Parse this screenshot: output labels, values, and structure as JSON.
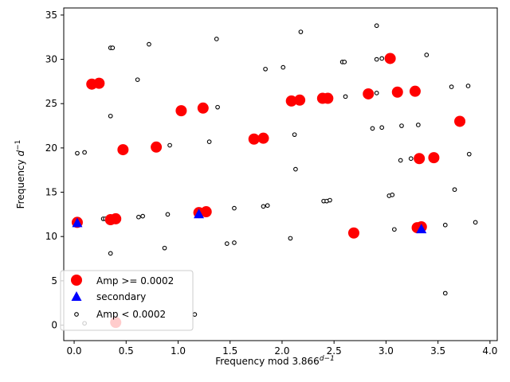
{
  "chart_data": {
    "type": "scatter",
    "xlabel": "Frequency mod 3.866",
    "xlabel_sup": "d−1",
    "ylabel": "Frequency ",
    "ylabel_var": "d",
    "ylabel_sup": "−1",
    "xlim": [
      -0.1,
      4.07
    ],
    "ylim": [
      -1.75,
      35.8
    ],
    "x_ticks": [
      0.0,
      0.5,
      1.0,
      1.5,
      2.0,
      2.5,
      3.0,
      3.5,
      4.0
    ],
    "x_tick_labels": [
      "0.0",
      "0.5",
      "1.0",
      "1.5",
      "2.0",
      "2.5",
      "3.0",
      "3.5",
      "4.0"
    ],
    "y_ticks": [
      0,
      5,
      10,
      15,
      20,
      25,
      30,
      35
    ],
    "y_tick_labels": [
      "0",
      "5",
      "10",
      "15",
      "20",
      "25",
      "30",
      "35"
    ],
    "grid": false,
    "legend_position": "lower-left",
    "series": [
      {
        "name": "Amp >= 0.0002",
        "marker": "circle",
        "color": "#ff0000",
        "points": [
          [
            0.03,
            11.6
          ],
          [
            0.35,
            11.9
          ],
          [
            0.4,
            12.0
          ],
          [
            0.4,
            0.3
          ],
          [
            0.17,
            27.2
          ],
          [
            0.24,
            27.3
          ],
          [
            0.47,
            19.8
          ],
          [
            0.79,
            20.1
          ],
          [
            1.03,
            24.2
          ],
          [
            1.24,
            24.5
          ],
          [
            1.2,
            12.7
          ],
          [
            1.27,
            12.8
          ],
          [
            1.73,
            21.0
          ],
          [
            1.82,
            21.1
          ],
          [
            2.09,
            25.3
          ],
          [
            2.17,
            25.4
          ],
          [
            2.39,
            25.6
          ],
          [
            2.44,
            25.6
          ],
          [
            2.69,
            10.4
          ],
          [
            2.83,
            26.1
          ],
          [
            3.04,
            30.1
          ],
          [
            3.11,
            26.3
          ],
          [
            3.28,
            26.4
          ],
          [
            3.3,
            11.0
          ],
          [
            3.34,
            11.1
          ],
          [
            3.32,
            18.8
          ],
          [
            3.46,
            18.9
          ],
          [
            3.71,
            23.0
          ]
        ]
      },
      {
        "name": "secondary",
        "marker": "triangle",
        "color": "#0000ff",
        "points": [
          [
            0.03,
            11.6
          ],
          [
            1.2,
            12.6
          ],
          [
            3.34,
            10.9
          ]
        ]
      },
      {
        "name": "Amp < 0.0002",
        "marker": "open-circle",
        "color": "#000000",
        "points": [
          [
            0.03,
            19.4
          ],
          [
            0.1,
            19.5
          ],
          [
            0.1,
            0.2
          ],
          [
            0.28,
            12.0
          ],
          [
            0.3,
            12.0
          ],
          [
            0.35,
            8.1
          ],
          [
            0.35,
            23.6
          ],
          [
            0.35,
            31.3
          ],
          [
            0.37,
            31.3
          ],
          [
            0.61,
            27.7
          ],
          [
            0.62,
            12.2
          ],
          [
            0.66,
            12.3
          ],
          [
            0.72,
            31.7
          ],
          [
            0.87,
            8.7
          ],
          [
            0.9,
            12.5
          ],
          [
            0.92,
            20.3
          ],
          [
            1.16,
            1.2
          ],
          [
            1.3,
            20.7
          ],
          [
            1.37,
            32.3
          ],
          [
            1.38,
            24.6
          ],
          [
            1.47,
            9.2
          ],
          [
            1.54,
            9.3
          ],
          [
            1.54,
            13.2
          ],
          [
            1.82,
            13.4
          ],
          [
            1.84,
            28.9
          ],
          [
            1.86,
            13.5
          ],
          [
            2.01,
            29.1
          ],
          [
            2.08,
            9.8
          ],
          [
            2.12,
            21.5
          ],
          [
            2.13,
            17.6
          ],
          [
            2.18,
            33.1
          ],
          [
            2.4,
            14.0
          ],
          [
            2.43,
            14.0
          ],
          [
            2.46,
            14.1
          ],
          [
            2.58,
            29.7
          ],
          [
            2.6,
            29.7
          ],
          [
            2.61,
            25.8
          ],
          [
            2.87,
            22.2
          ],
          [
            2.91,
            33.8
          ],
          [
            2.91,
            26.2
          ],
          [
            2.91,
            30.0
          ],
          [
            2.96,
            22.3
          ],
          [
            2.96,
            30.1
          ],
          [
            3.03,
            14.6
          ],
          [
            3.06,
            14.7
          ],
          [
            3.08,
            10.8
          ],
          [
            3.14,
            18.6
          ],
          [
            3.15,
            22.5
          ],
          [
            3.24,
            18.8
          ],
          [
            3.31,
            22.6
          ],
          [
            3.39,
            30.5
          ],
          [
            3.57,
            3.6
          ],
          [
            3.57,
            11.3
          ],
          [
            3.63,
            26.9
          ],
          [
            3.66,
            15.3
          ],
          [
            3.79,
            27.0
          ],
          [
            3.8,
            19.3
          ],
          [
            3.86,
            11.6
          ]
        ]
      }
    ]
  }
}
